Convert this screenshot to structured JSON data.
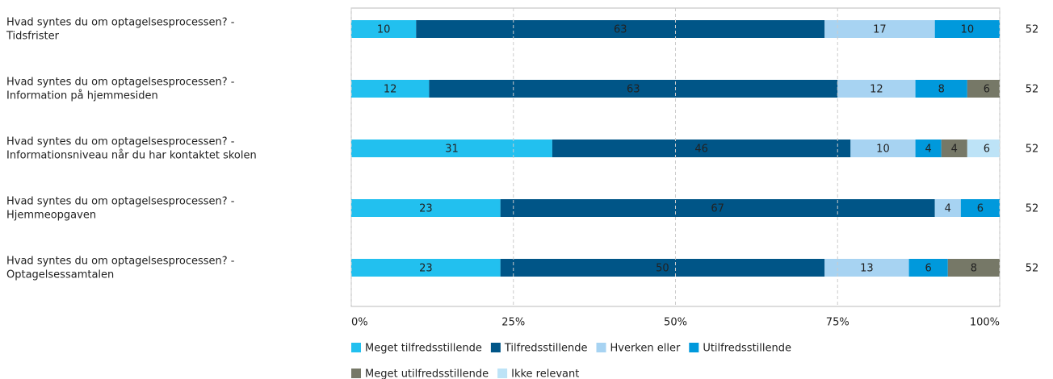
{
  "chart_data": {
    "type": "stacked-bar-horizontal",
    "categories": [
      [
        "Hvad syntes du om optagelsesprocessen? -",
        "Tidsfrister"
      ],
      [
        "Hvad syntes du om optagelsesprocessen? -",
        "Information på hjemmesiden"
      ],
      [
        "Hvad syntes du om optagelsesprocessen? -",
        "Informationsniveau når du har kontaktet skolen"
      ],
      [
        "Hvad syntes du om optagelsesprocessen? -",
        "Hjemmeopgaven"
      ],
      [
        "Hvad syntes du om optagelsesprocessen? -",
        "Optagelsessamtalen"
      ]
    ],
    "series": [
      {
        "name": "Meget tilfredsstillende",
        "color": "#22c0ef",
        "values": [
          10,
          12,
          31,
          23,
          23
        ]
      },
      {
        "name": "Tilfredsstillende",
        "color": "#005587",
        "values": [
          63,
          63,
          46,
          67,
          50
        ]
      },
      {
        "name": "Hverken eller",
        "color": "#a7d3f2",
        "values": [
          17,
          12,
          10,
          4,
          13
        ]
      },
      {
        "name": "Utilfredsstillende",
        "color": "#0099dc",
        "values": [
          10,
          8,
          4,
          6,
          6
        ]
      },
      {
        "name": "Meget utilfredsstillende",
        "color": "#767867",
        "values": [
          null,
          6,
          4,
          null,
          8
        ]
      },
      {
        "name": "Ikke relevant",
        "color": "#bde3f7",
        "values": [
          null,
          null,
          6,
          null,
          null
        ]
      }
    ],
    "counts": [
      52,
      52,
      52,
      52,
      52
    ],
    "xlim": [
      0,
      100
    ],
    "xticks": [
      {
        "value": 0,
        "label": "0%"
      },
      {
        "value": 25,
        "label": "25%"
      },
      {
        "value": 50,
        "label": "50%"
      },
      {
        "value": 75,
        "label": "75%"
      },
      {
        "value": 100,
        "label": "100%"
      }
    ],
    "grid": true
  }
}
